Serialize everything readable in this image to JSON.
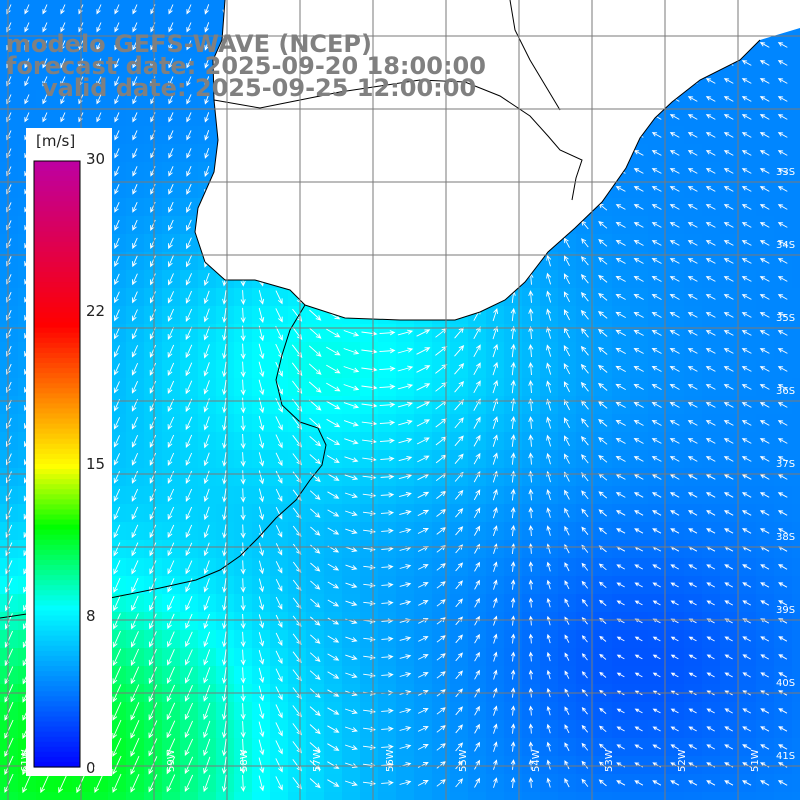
{
  "title": {
    "line1": "modelo GEFS-WAVE (NCEP)",
    "line2": "forecast date: 2025-09-20 18:00:00",
    "line3": "valid date: 2025-09-25 12:00:00"
  },
  "colorbar": {
    "unit": "[m/s]",
    "ticks": [
      "30",
      "22",
      "15",
      "8",
      "0"
    ],
    "tick_values": [
      30,
      22,
      15,
      8,
      0
    ]
  },
  "axes": {
    "lon_labels": [
      "61W",
      "60W",
      "59W",
      "58W",
      "57W",
      "56W",
      "55W",
      "54W",
      "53W",
      "52W",
      "51W"
    ],
    "lat_labels": [
      "33S",
      "34S",
      "35S",
      "36S",
      "37S",
      "38S",
      "39S",
      "40S",
      "41S"
    ]
  },
  "colors": {
    "land": "#ffffff",
    "coast": "#000000",
    "grid": "#7a7a7a",
    "arrow": "#ffffff",
    "title": "#808080",
    "wind_low": "#0030ff",
    "wind_mid": "#00ffff",
    "wind_high": "#00ff00"
  },
  "map_data": {
    "field": "wind speed with direction arrows",
    "regions": [
      {
        "name": "coastal shelf",
        "speed_ms": 8,
        "direction": "from northeast"
      },
      {
        "name": "southwest open sea",
        "speed_ms": 11,
        "direction": "from northeast"
      },
      {
        "name": "east open sea",
        "speed_ms": 4,
        "direction": "from southeast"
      }
    ]
  }
}
